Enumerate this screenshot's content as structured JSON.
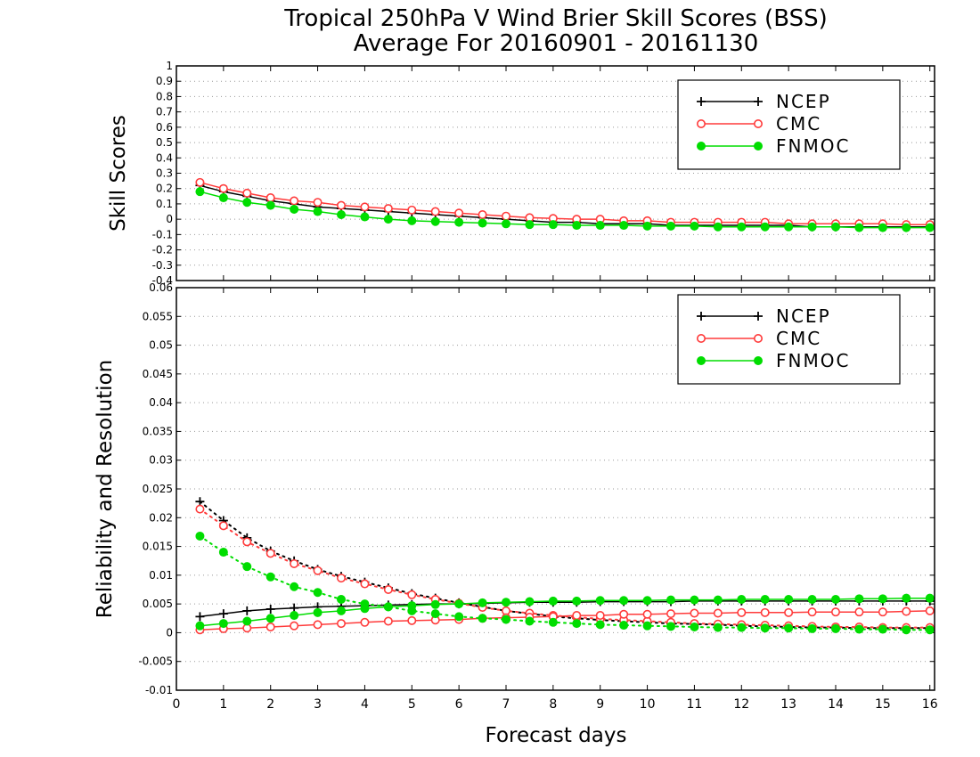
{
  "title": {
    "line1": "Tropical 250hPa V Wind Brier Skill Scores (BSS)",
    "line2": "Average For 20160901 - 20161130"
  },
  "colors": {
    "NCEP": "#000000",
    "CMC": "#ff3b3b",
    "FNMOC": "#00dd00"
  },
  "chart_data": [
    {
      "type": "line",
      "panel": "top",
      "ylabel": "Skill Scores",
      "xlim": [
        0,
        16.1
      ],
      "ylim": [
        -0.4,
        1.0
      ],
      "yticks": [
        -0.4,
        -0.3,
        -0.2,
        -0.1,
        0,
        0.1,
        0.2,
        0.3,
        0.4,
        0.5,
        0.6,
        0.7,
        0.8,
        0.9,
        1
      ],
      "ytick_labels": [
        "-0.4",
        "-0.3",
        "-0.2",
        "-0.1",
        "0",
        "0.1",
        "0.2",
        "0.3",
        "0.4",
        "0.5",
        "0.6",
        "0.7",
        "0.8",
        "0.9",
        "1"
      ],
      "grid": true,
      "legend": {
        "position": "top-right",
        "entries": [
          "NCEP",
          "CMC",
          "FNMOC"
        ]
      },
      "x": [
        0.5,
        1,
        1.5,
        2,
        2.5,
        3,
        3.5,
        4,
        4.5,
        5,
        5.5,
        6,
        6.5,
        7,
        7.5,
        8,
        8.5,
        9,
        9.5,
        10,
        10.5,
        11,
        11.5,
        12,
        12.5,
        13,
        13.5,
        14,
        14.5,
        15,
        15.5,
        16
      ],
      "series": [
        {
          "name": "NCEP",
          "marker": "plus",
          "style": "solid",
          "values": [
            0.22,
            0.18,
            0.15,
            0.12,
            0.1,
            0.08,
            0.07,
            0.06,
            0.05,
            0.04,
            0.03,
            0.02,
            0.01,
            0.0,
            -0.01,
            -0.02,
            -0.02,
            -0.03,
            -0.03,
            -0.03,
            -0.04,
            -0.04,
            -0.04,
            -0.04,
            -0.04,
            -0.04,
            -0.05,
            -0.05,
            -0.05,
            -0.05,
            -0.05,
            -0.05
          ]
        },
        {
          "name": "CMC",
          "marker": "open-circle",
          "style": "solid",
          "values": [
            0.24,
            0.2,
            0.17,
            0.14,
            0.12,
            0.11,
            0.09,
            0.08,
            0.07,
            0.06,
            0.05,
            0.04,
            0.03,
            0.02,
            0.01,
            0.005,
            0.0,
            0.0,
            -0.01,
            -0.01,
            -0.02,
            -0.02,
            -0.02,
            -0.02,
            -0.02,
            -0.03,
            -0.03,
            -0.03,
            -0.03,
            -0.03,
            -0.035,
            -0.035
          ]
        },
        {
          "name": "FNMOC",
          "marker": "filled-circle",
          "style": "solid",
          "values": [
            0.18,
            0.14,
            0.11,
            0.09,
            0.065,
            0.05,
            0.03,
            0.015,
            0.0,
            -0.01,
            -0.015,
            -0.02,
            -0.025,
            -0.03,
            -0.035,
            -0.035,
            -0.04,
            -0.04,
            -0.04,
            -0.045,
            -0.045,
            -0.045,
            -0.05,
            -0.05,
            -0.05,
            -0.05,
            -0.05,
            -0.05,
            -0.055,
            -0.055,
            -0.055,
            -0.055
          ]
        }
      ]
    },
    {
      "type": "line",
      "panel": "bottom",
      "xlabel": "Forecast days",
      "ylabel": "Reliability and Resolution",
      "xlim": [
        0,
        16.1
      ],
      "xticks": [
        0,
        1,
        2,
        3,
        4,
        5,
        6,
        7,
        8,
        9,
        10,
        11,
        12,
        13,
        14,
        15,
        16
      ],
      "xtick_labels": [
        "0",
        "1",
        "2",
        "3",
        "4",
        "5",
        "6",
        "7",
        "8",
        "9",
        "10",
        "11",
        "12",
        "13",
        "14",
        "15",
        "16"
      ],
      "ylim": [
        -0.01,
        0.06
      ],
      "yticks": [
        -0.01,
        -0.005,
        0,
        0.005,
        0.01,
        0.015,
        0.02,
        0.025,
        0.03,
        0.035,
        0.04,
        0.045,
        0.05,
        0.055,
        0.06
      ],
      "ytick_labels": [
        "-0.01",
        "-0.005",
        "0",
        "0.005",
        "0.01",
        "0.015",
        "0.02",
        "0.025",
        "0.03",
        "0.035",
        "0.04",
        "0.045",
        "0.05",
        "0.055",
        "0.06"
      ],
      "grid": true,
      "legend": {
        "position": "top-right",
        "entries": [
          "NCEP",
          "CMC",
          "FNMOC"
        ]
      },
      "x": [
        0.5,
        1,
        1.5,
        2,
        2.5,
        3,
        3.5,
        4,
        4.5,
        5,
        5.5,
        6,
        6.5,
        7,
        7.5,
        8,
        8.5,
        9,
        9.5,
        10,
        10.5,
        11,
        11.5,
        12,
        12.5,
        13,
        13.5,
        14,
        14.5,
        15,
        15.5,
        16
      ],
      "series": [
        {
          "name": "NCEP",
          "component": "reliability",
          "marker": "plus",
          "style": "dotted",
          "values": [
            0.0228,
            0.0195,
            0.0165,
            0.0142,
            0.0125,
            0.011,
            0.0098,
            0.0088,
            0.0078,
            0.0068,
            0.006,
            0.0052,
            0.0045,
            0.0038,
            0.0033,
            0.0028,
            0.0025,
            0.0022,
            0.002,
            0.0018,
            0.0016,
            0.0015,
            0.0014,
            0.0012,
            0.0011,
            0.001,
            0.0009,
            0.0009,
            0.0008,
            0.0008,
            0.0008,
            0.0008
          ]
        },
        {
          "name": "NCEP",
          "component": "resolution",
          "marker": "plus",
          "style": "solid",
          "values": [
            0.0028,
            0.0033,
            0.0038,
            0.0041,
            0.0043,
            0.0045,
            0.0046,
            0.0047,
            0.0048,
            0.0049,
            0.005,
            0.005,
            0.0051,
            0.0052,
            0.0053,
            0.0053,
            0.0053,
            0.0054,
            0.0054,
            0.0054,
            0.0054,
            0.0055,
            0.0055,
            0.0055,
            0.0055,
            0.0055,
            0.0055,
            0.0055,
            0.0055,
            0.0055,
            0.0055,
            0.0055
          ]
        },
        {
          "name": "CMC",
          "component": "reliability",
          "marker": "open-circle",
          "style": "dotted",
          "values": [
            0.0215,
            0.0186,
            0.0158,
            0.0138,
            0.012,
            0.0108,
            0.0095,
            0.0085,
            0.0075,
            0.0066,
            0.0058,
            0.0051,
            0.0044,
            0.0038,
            0.0034,
            0.003,
            0.0027,
            0.0024,
            0.0022,
            0.002,
            0.0018,
            0.0016,
            0.0015,
            0.0014,
            0.0013,
            0.0012,
            0.0011,
            0.001,
            0.001,
            0.0009,
            0.0009,
            0.0009
          ]
        },
        {
          "name": "CMC",
          "component": "resolution",
          "marker": "open-circle",
          "style": "solid",
          "values": [
            0.0005,
            0.0007,
            0.0008,
            0.001,
            0.0012,
            0.0014,
            0.0016,
            0.0018,
            0.002,
            0.0021,
            0.0022,
            0.0023,
            0.0025,
            0.0026,
            0.0027,
            0.0028,
            0.003,
            0.003,
            0.0032,
            0.0032,
            0.0033,
            0.0034,
            0.0034,
            0.0035,
            0.0035,
            0.0035,
            0.0036,
            0.0036,
            0.0036,
            0.0036,
            0.0037,
            0.0038
          ]
        },
        {
          "name": "FNMOC",
          "component": "reliability",
          "marker": "filled-circle",
          "style": "dotted",
          "values": [
            0.0168,
            0.014,
            0.0115,
            0.0097,
            0.008,
            0.007,
            0.0058,
            0.005,
            0.0045,
            0.0038,
            0.0033,
            0.0028,
            0.0025,
            0.0023,
            0.002,
            0.0018,
            0.0016,
            0.0014,
            0.0013,
            0.0012,
            0.0011,
            0.001,
            0.0009,
            0.0009,
            0.0008,
            0.0008,
            0.0007,
            0.0007,
            0.0006,
            0.0006,
            0.0005,
            0.0005
          ]
        },
        {
          "name": "FNMOC",
          "component": "resolution",
          "marker": "filled-circle",
          "style": "solid",
          "values": [
            0.0012,
            0.0016,
            0.002,
            0.0025,
            0.003,
            0.0035,
            0.0038,
            0.0042,
            0.0045,
            0.0047,
            0.0049,
            0.005,
            0.0052,
            0.0053,
            0.0054,
            0.0055,
            0.0055,
            0.0056,
            0.0056,
            0.0056,
            0.0057,
            0.0057,
            0.0057,
            0.0058,
            0.0058,
            0.0058,
            0.0058,
            0.0058,
            0.0059,
            0.0059,
            0.006,
            0.006
          ]
        }
      ]
    }
  ]
}
